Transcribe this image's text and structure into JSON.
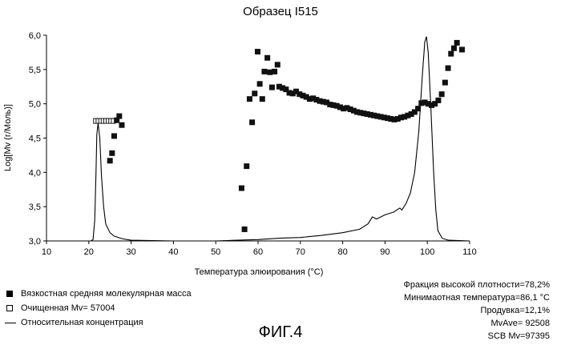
{
  "chart_data": {
    "type": "scatter",
    "title": "Образец I515",
    "xlabel": "Температура элюирования (°C)",
    "ylabel": "Log[Mv (г/Моль)]",
    "xlim": [
      10,
      110
    ],
    "ylim": [
      3.0,
      6.0
    ],
    "x_ticks": [
      "10",
      "20",
      "30",
      "40",
      "50",
      "60",
      "70",
      "80",
      "90",
      "100",
      "110"
    ],
    "y_ticks": [
      "3,0",
      "3,5",
      "4,0",
      "4,5",
      "5,0",
      "5,5",
      "6,0"
    ],
    "grid": false,
    "series": [
      {
        "name": "Вязкостная средняя молекулярная масса",
        "marker": "filled-square",
        "points": [
          [
            25.0,
            4.17
          ],
          [
            25.5,
            4.28
          ],
          [
            26.0,
            4.53
          ],
          [
            26.6,
            4.76
          ],
          [
            27.2,
            4.82
          ],
          [
            27.8,
            4.69
          ],
          [
            56.1,
            3.77
          ],
          [
            56.8,
            3.17
          ],
          [
            57.3,
            4.09
          ],
          [
            58.0,
            5.07
          ],
          [
            58.6,
            4.73
          ],
          [
            59.2,
            5.15
          ],
          [
            59.9,
            5.76
          ],
          [
            60.4,
            5.29
          ],
          [
            61.0,
            5.07
          ],
          [
            61.5,
            5.47
          ],
          [
            62.2,
            5.67
          ],
          [
            62.8,
            5.46
          ],
          [
            63.3,
            5.24
          ],
          [
            63.9,
            5.47
          ],
          [
            64.6,
            5.57
          ],
          [
            65.0,
            5.25
          ],
          [
            65.8,
            5.23
          ],
          [
            66.6,
            5.21
          ],
          [
            67.4,
            5.16
          ],
          [
            68.2,
            5.15
          ],
          [
            69.0,
            5.18
          ],
          [
            69.8,
            5.14
          ],
          [
            70.6,
            5.12
          ],
          [
            71.4,
            5.1
          ],
          [
            72.2,
            5.07
          ],
          [
            73.0,
            5.08
          ],
          [
            73.8,
            5.06
          ],
          [
            74.6,
            5.04
          ],
          [
            75.4,
            5.03
          ],
          [
            76.2,
            5.02
          ],
          [
            77.0,
            4.99
          ],
          [
            77.8,
            4.98
          ],
          [
            78.6,
            4.97
          ],
          [
            79.4,
            4.95
          ],
          [
            80.2,
            4.93
          ],
          [
            81.0,
            4.94
          ],
          [
            81.8,
            4.92
          ],
          [
            82.6,
            4.9
          ],
          [
            83.4,
            4.88
          ],
          [
            84.2,
            4.87
          ],
          [
            85.0,
            4.86
          ],
          [
            85.8,
            4.85
          ],
          [
            86.6,
            4.84
          ],
          [
            87.4,
            4.83
          ],
          [
            88.2,
            4.82
          ],
          [
            89.0,
            4.81
          ],
          [
            89.8,
            4.8
          ],
          [
            90.6,
            4.79
          ],
          [
            91.4,
            4.78
          ],
          [
            92.2,
            4.77
          ],
          [
            93.0,
            4.78
          ],
          [
            93.8,
            4.8
          ],
          [
            94.6,
            4.81
          ],
          [
            95.4,
            4.83
          ],
          [
            96.2,
            4.85
          ],
          [
            97.0,
            4.88
          ],
          [
            97.8,
            4.93
          ],
          [
            98.6,
            5.01
          ],
          [
            99.4,
            5.02
          ],
          [
            100.2,
            5.0
          ],
          [
            101.0,
            4.98
          ],
          [
            101.8,
            5.0
          ],
          [
            102.6,
            5.05
          ],
          [
            103.4,
            5.14
          ],
          [
            104.2,
            5.31
          ],
          [
            104.9,
            5.52
          ],
          [
            105.6,
            5.73
          ],
          [
            106.3,
            5.81
          ],
          [
            107.0,
            5.89
          ],
          [
            108.2,
            5.79
          ]
        ]
      },
      {
        "name": "Очищенная Mv= 57004",
        "marker": "open-square",
        "points": [
          [
            21.6,
            4.75
          ],
          [
            22.2,
            4.75
          ],
          [
            22.8,
            4.75
          ],
          [
            23.4,
            4.75
          ],
          [
            24.0,
            4.75
          ],
          [
            24.6,
            4.75
          ],
          [
            25.2,
            4.75
          ],
          [
            25.8,
            4.75
          ]
        ]
      },
      {
        "name": "Относительная концентрация",
        "marker": "line",
        "points": [
          [
            10,
            3.0
          ],
          [
            20.5,
            3.0
          ],
          [
            21.0,
            3.02
          ],
          [
            21.4,
            3.3
          ],
          [
            21.7,
            4.0
          ],
          [
            21.9,
            4.55
          ],
          [
            22.2,
            4.72
          ],
          [
            22.6,
            4.5
          ],
          [
            23.0,
            3.95
          ],
          [
            23.5,
            3.5
          ],
          [
            24.0,
            3.25
          ],
          [
            25.0,
            3.12
          ],
          [
            26.0,
            3.07
          ],
          [
            28.0,
            3.03
          ],
          [
            30.0,
            3.01
          ],
          [
            40.0,
            3.0
          ],
          [
            50.0,
            3.0
          ],
          [
            55.0,
            3.01
          ],
          [
            60.0,
            3.02
          ],
          [
            65.0,
            3.04
          ],
          [
            70.0,
            3.05
          ],
          [
            75.0,
            3.08
          ],
          [
            80.0,
            3.12
          ],
          [
            84.0,
            3.17
          ],
          [
            86.0,
            3.25
          ],
          [
            87.0,
            3.35
          ],
          [
            88.0,
            3.32
          ],
          [
            90.0,
            3.38
          ],
          [
            92.0,
            3.42
          ],
          [
            93.5,
            3.48
          ],
          [
            94.0,
            3.45
          ],
          [
            95.0,
            3.55
          ],
          [
            96.0,
            3.7
          ],
          [
            97.0,
            4.0
          ],
          [
            98.0,
            4.6
          ],
          [
            98.8,
            5.4
          ],
          [
            99.4,
            5.9
          ],
          [
            99.8,
            5.98
          ],
          [
            100.2,
            5.75
          ],
          [
            100.8,
            5.0
          ],
          [
            101.5,
            4.0
          ],
          [
            102.0,
            3.45
          ],
          [
            102.5,
            3.15
          ],
          [
            103.5,
            3.04
          ],
          [
            105.0,
            3.01
          ],
          [
            110.0,
            3.0
          ]
        ]
      }
    ],
    "legend_position": "bottom-left"
  },
  "legend": [
    {
      "label": "Вязкостная средняя молекулярная масса",
      "icon": "filled-square"
    },
    {
      "label": "Очищенная Mv= 57004",
      "icon": "open-square"
    },
    {
      "label": "Относительная концентрация",
      "icon": "line"
    }
  ],
  "stats": {
    "line1": "Фракция высокой плотности=78,2%",
    "line2": "Минимаотная температура=86,1 °C",
    "line3": "Продувка=12,1%",
    "line4": "MvAve= 92508",
    "line5": "SCB Mv=97395"
  },
  "figure_caption": "ФИГ.4"
}
